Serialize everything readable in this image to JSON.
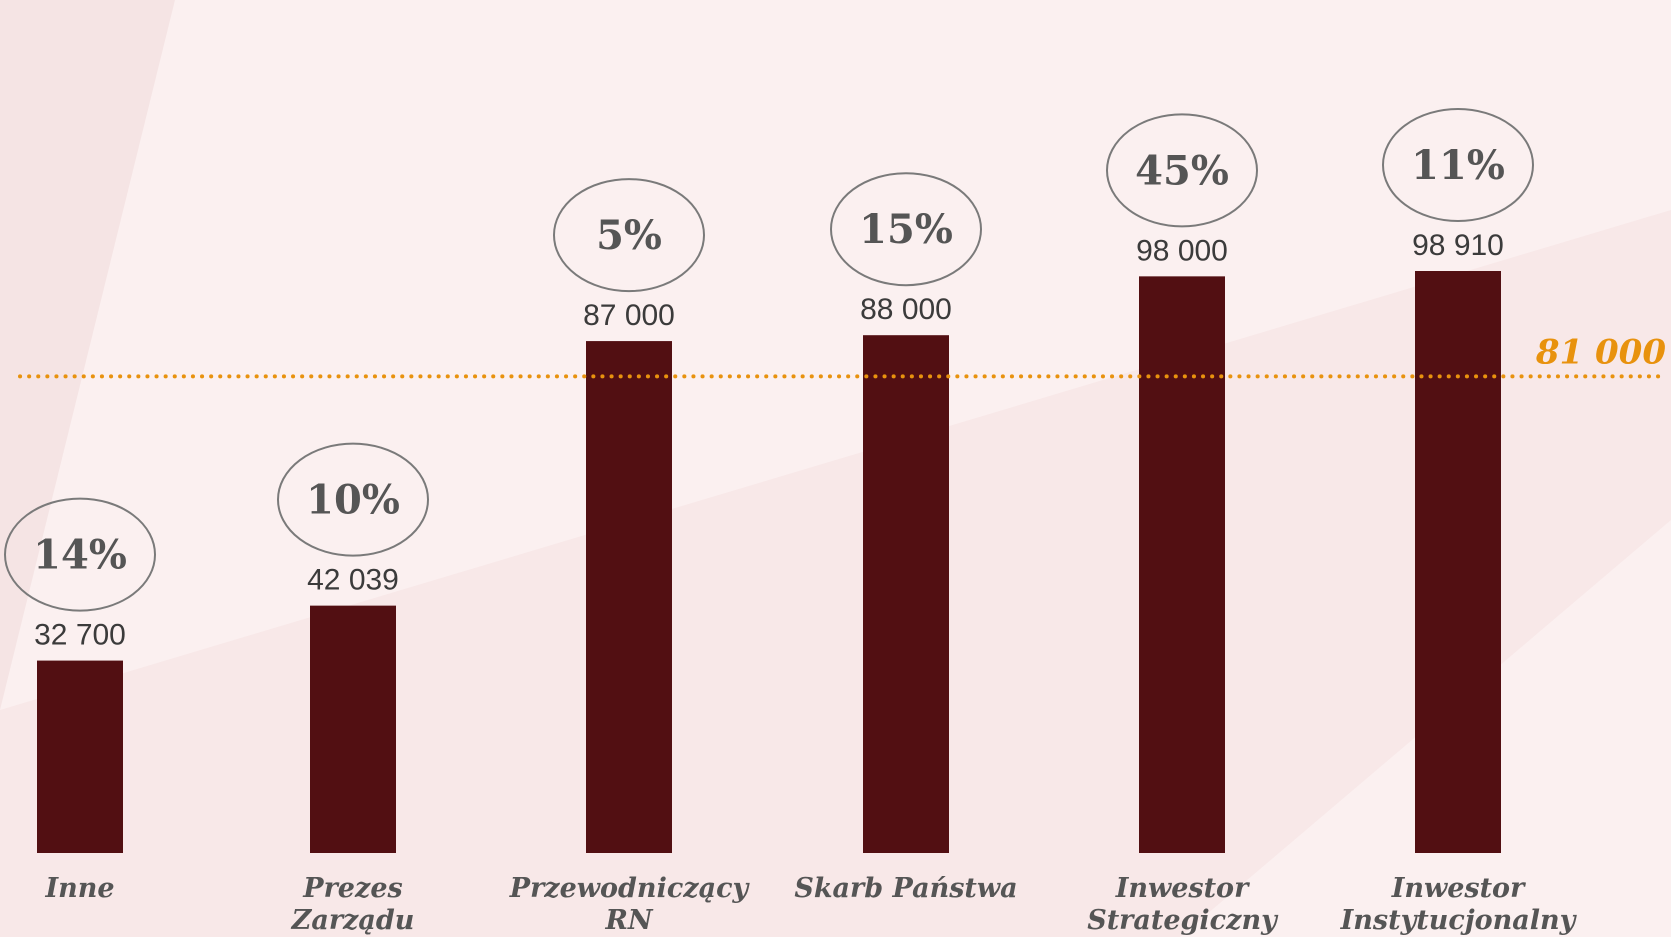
{
  "chart_data": {
    "type": "bar",
    "categories": [
      [
        "Inne"
      ],
      [
        "Prezes",
        "Zarządu"
      ],
      [
        "Przewodniczący",
        "RN"
      ],
      [
        "Skarb Państwa"
      ],
      [
        "Inwestor",
        "Strategiczny"
      ],
      [
        "Inwestor",
        "Instytucjonalny"
      ]
    ],
    "values": [
      32700,
      42039,
      87000,
      88000,
      98000,
      98910
    ],
    "value_labels": [
      "32 700",
      "42 039",
      "87 000",
      "88 000",
      "98 000",
      "98 910"
    ],
    "percent_labels": [
      "14%",
      "10%",
      "5%",
      "15%",
      "45%",
      "11%"
    ],
    "reference_line": {
      "value": 81000,
      "label": "81 000",
      "style": "dotted"
    },
    "ylim": [
      0,
      110000
    ],
    "grid": false,
    "colors": {
      "bar": "#520f12",
      "reference": "#e8920e",
      "ellipse_stroke": "#7a7a7a",
      "text": "#3b3b3b",
      "category_text": "#555555",
      "background": "#fbf0f0"
    }
  }
}
